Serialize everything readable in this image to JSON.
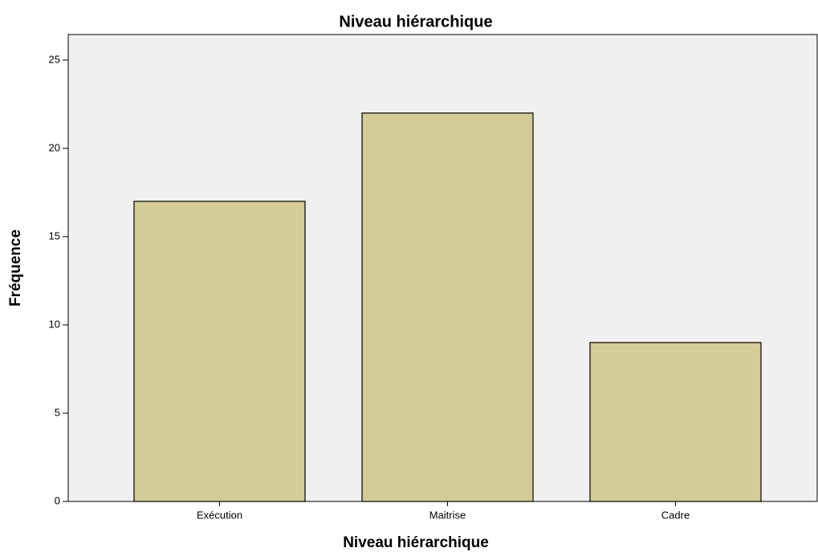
{
  "chart_data": {
    "type": "bar",
    "title": "Niveau hiérarchique",
    "x_label": "Niveau hiérarchique",
    "y_label": "Fréquence",
    "categories": [
      "Exécution",
      "Maitrise",
      "Cadre"
    ],
    "values": [
      17,
      22,
      9
    ],
    "color": "#d3cc96",
    "ylim": [
      0,
      26.45
    ],
    "yticks": [
      0,
      5,
      10,
      15,
      20,
      25
    ],
    "grid": false
  }
}
